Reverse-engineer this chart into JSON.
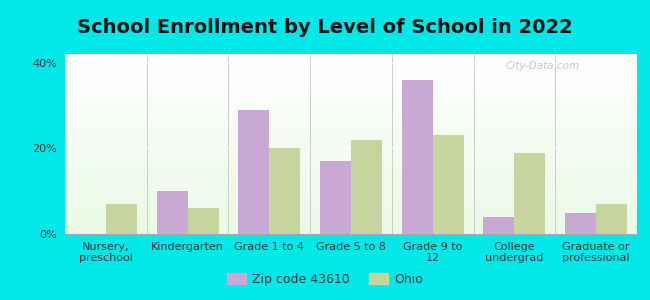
{
  "title": "School Enrollment by Level of School in 2022",
  "categories": [
    "Nursery,\npreschool",
    "Kindergarten",
    "Grade 1 to 4",
    "Grade 5 to 8",
    "Grade 9 to\n12",
    "College\nundergrad",
    "Graduate or\nprofessional"
  ],
  "zip_values": [
    0,
    10,
    29,
    17,
    36,
    4,
    5
  ],
  "ohio_values": [
    7,
    6,
    20,
    22,
    23,
    19,
    7
  ],
  "zip_color": "#c9a8d4",
  "ohio_color": "#c8d4a0",
  "background_color": "#00e8e8",
  "ylim": [
    0,
    42
  ],
  "yticks": [
    0,
    20,
    40
  ],
  "ytick_labels": [
    "0%",
    "20%",
    "40%"
  ],
  "legend_zip_label": "Zip code 43610",
  "legend_ohio_label": "Ohio",
  "bar_width": 0.38,
  "title_fontsize": 14,
  "tick_fontsize": 8,
  "legend_fontsize": 9,
  "watermark_text": "City-Data.com"
}
